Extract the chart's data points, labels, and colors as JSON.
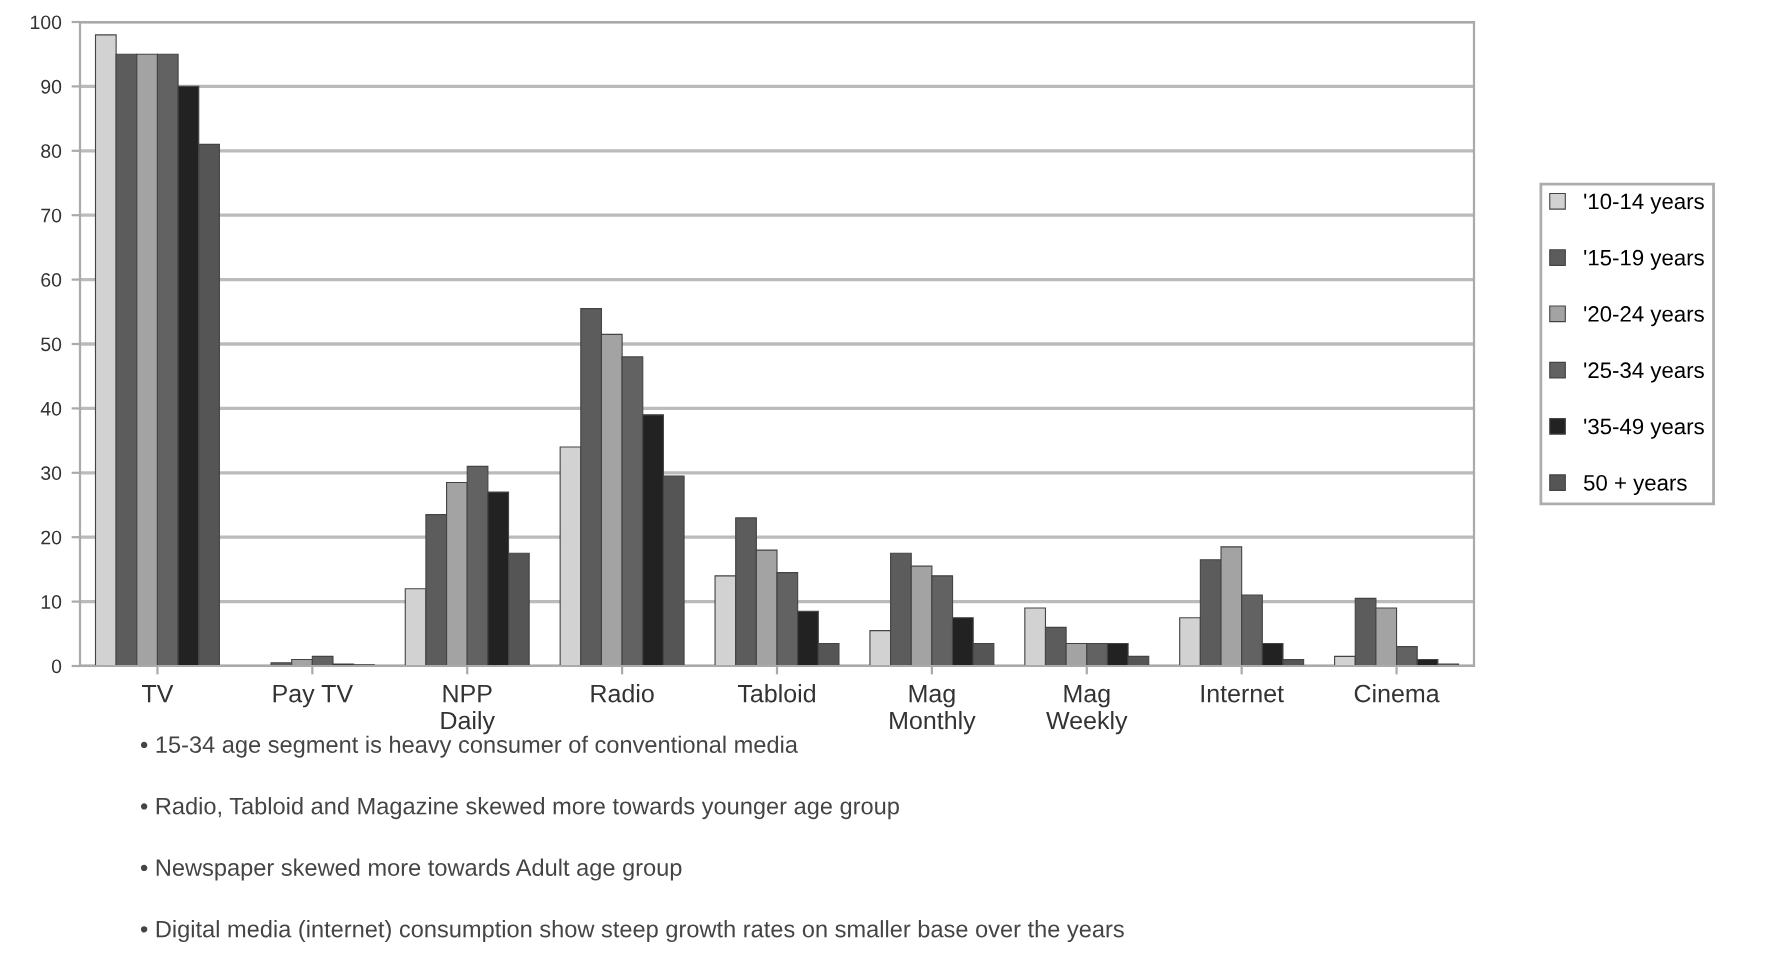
{
  "chart_data": {
    "type": "bar",
    "categories": [
      "TV",
      "Pay TV",
      "NPP\nDaily",
      "Radio",
      "Tabloid",
      "Mag\nMonthly",
      "Mag\nWeekly",
      "Internet",
      "Cinema"
    ],
    "series": [
      {
        "name": "'10-14 years",
        "color": "#d2d2d2",
        "values": [
          98,
          null,
          12,
          34,
          14,
          5.5,
          9,
          7.5,
          1.5
        ]
      },
      {
        "name": "'15-19 years",
        "color": "#5c5c5c",
        "values": [
          95,
          0.5,
          23.5,
          55.5,
          23,
          17.5,
          6,
          16.5,
          10.5
        ]
      },
      {
        "name": "'20-24 years",
        "color": "#a3a3a3",
        "values": [
          95,
          1,
          28.5,
          51.5,
          18,
          15.5,
          3.5,
          18.5,
          9
        ]
      },
      {
        "name": "'25-34 years",
        "color": "#626262",
        "values": [
          95,
          1.5,
          31,
          48,
          14.5,
          14,
          3.5,
          11,
          3
        ]
      },
      {
        "name": "'35-49 years",
        "color": "#222222",
        "values": [
          90,
          0.3,
          27,
          39,
          8.5,
          7.5,
          3.5,
          3.5,
          1
        ]
      },
      {
        "name": "50 + years",
        "color": "#555555",
        "values": [
          81,
          0.2,
          17.5,
          29.5,
          3.5,
          3.5,
          1.5,
          1,
          0.3
        ]
      }
    ],
    "ylim": [
      0,
      100
    ],
    "yticks": [
      0,
      10,
      20,
      30,
      40,
      50,
      60,
      70,
      80,
      90,
      100
    ],
    "grid": "y",
    "legend": "right",
    "annotations": [
      "• 15-34 age segment is heavy consumer of conventional media",
      "• Radio, Tabloid and Magazine skewed more towards younger age group",
      "• Newspaper skewed more towards Adult age group",
      "• Digital media (internet) consumption show steep growth rates on smaller base over the years"
    ]
  }
}
